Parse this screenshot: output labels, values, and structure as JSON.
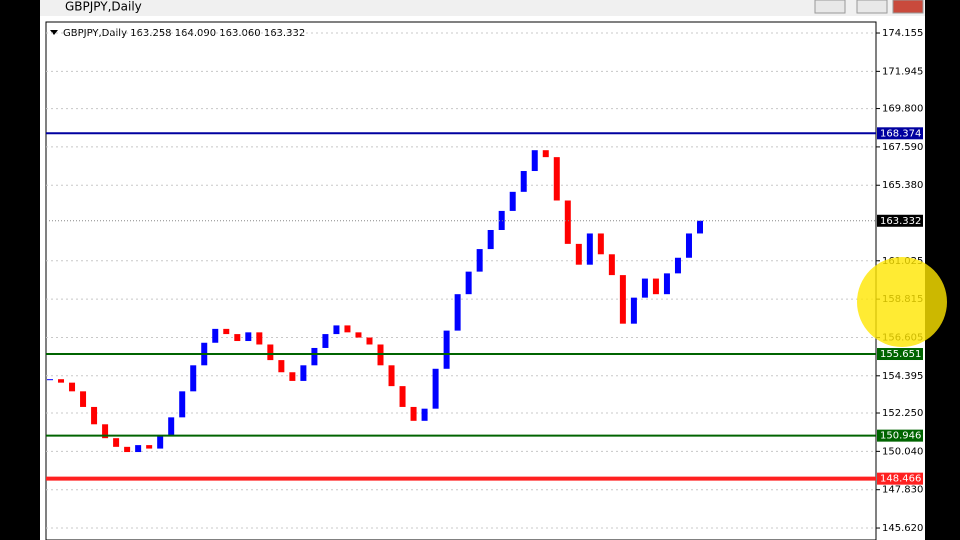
{
  "window": {
    "title": "GBPJPY,Daily"
  },
  "chart_data": {
    "type": "candlestick",
    "title": "GBPJPY,Daily",
    "ohlc_header": [
      "163.258",
      "164.090",
      "163.060",
      "163.332"
    ],
    "close": [
      154.2,
      154.0,
      153.5,
      152.6,
      151.6,
      150.8,
      150.3,
      150.0,
      150.4,
      150.2,
      150.9,
      152.0,
      153.5,
      155.0,
      156.3,
      157.1,
      156.8,
      156.4,
      156.9,
      156.2,
      155.3,
      154.6,
      154.1,
      155.0,
      156.0,
      156.8,
      157.3,
      156.9,
      156.6,
      156.2,
      155.0,
      153.8,
      152.6,
      151.8,
      152.5,
      154.8,
      157.0,
      159.1,
      160.4,
      161.7,
      162.8,
      163.9,
      165.0,
      166.2,
      167.4,
      167.0,
      164.5,
      162.0,
      160.8,
      162.6,
      161.4,
      160.2,
      157.4,
      158.9,
      160.0,
      159.1,
      160.3,
      161.2,
      162.6,
      163.332
    ],
    "up_color": "#0000ff",
    "down_color": "#ff0000",
    "ylim": [
      144.93,
      174.79
    ],
    "yticks": [
      174.155,
      171.945,
      {
        "value": 169.8,
        "label": "169.800"
      },
      {
        "value": 167.59,
        "label": "167.590"
      },
      {
        "value": 165.38,
        "label": "165.380"
      },
      161.025,
      158.815,
      156.605,
      154.395,
      {
        "value": 152.25,
        "label": "152.250"
      },
      {
        "value": 150.04,
        "label": "150.040"
      },
      {
        "value": 147.83,
        "label": "147.830"
      },
      {
        "value": 145.62,
        "label": "145.620"
      }
    ],
    "grid": true,
    "levels": [
      {
        "value": 168.374,
        "color": "#0000a0"
      },
      {
        "value": 155.651,
        "color": "#006400"
      },
      {
        "value": 150.946,
        "color": "#006400"
      },
      {
        "value": 148.466,
        "color": "#ff2020"
      }
    ],
    "current_price": 163.332
  }
}
